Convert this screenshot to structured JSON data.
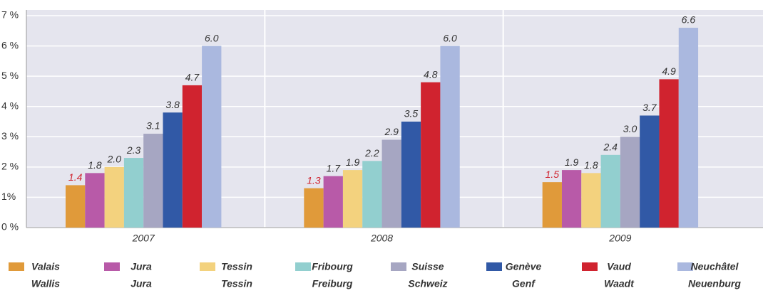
{
  "chart_data": {
    "type": "bar",
    "categories": [
      "2007",
      "2008",
      "2009"
    ],
    "ylim": [
      0,
      7
    ],
    "yticks": [
      {
        "value": 0,
        "label": "0 %"
      },
      {
        "value": 1,
        "label": "1%"
      },
      {
        "value": 2,
        "label": "2 %"
      },
      {
        "value": 3,
        "label": "3 %"
      },
      {
        "value": 4,
        "label": "4 %"
      },
      {
        "value": 5,
        "label": "5 %"
      },
      {
        "value": 6,
        "label": "6 %"
      },
      {
        "value": 7,
        "label": "7 %"
      }
    ],
    "grid": true,
    "legend": "bottom",
    "series": [
      {
        "name": "Valais",
        "name2": "Wallis",
        "color": "#e09a3a",
        "label_color": "#d0232f",
        "values": [
          1.4,
          1.3,
          1.5
        ],
        "value_labels": [
          "1.4",
          "1.3",
          "1.5"
        ]
      },
      {
        "name": "Jura",
        "name2": "Jura",
        "color": "#b85aa8",
        "values": [
          1.8,
          1.7,
          1.9
        ],
        "value_labels": [
          "1.8",
          "1.7",
          "1.9"
        ]
      },
      {
        "name": "Tessin",
        "name2": "Tessin",
        "color": "#f3d27e",
        "values": [
          2.0,
          1.9,
          1.8
        ],
        "value_labels": [
          "2.0",
          "1.9",
          "1.8"
        ]
      },
      {
        "name": "Fribourg",
        "name2": "Freiburg",
        "color": "#92cfcf",
        "values": [
          2.3,
          2.2,
          2.4
        ],
        "value_labels": [
          "2.3",
          "2.2",
          "2.4"
        ]
      },
      {
        "name": "Suisse",
        "name2": "Schweiz",
        "color": "#a6a6c2",
        "values": [
          3.1,
          2.9,
          3.0
        ],
        "value_labels": [
          "3.1",
          "2.9",
          "3.0"
        ]
      },
      {
        "name": "Genève",
        "name2": "Genf",
        "color": "#3159a6",
        "values": [
          3.8,
          3.5,
          3.7
        ],
        "value_labels": [
          "3.8",
          "3.5",
          "3.7"
        ]
      },
      {
        "name": "Vaud",
        "name2": "Waadt",
        "color": "#d0232f",
        "values": [
          4.7,
          4.8,
          4.9
        ],
        "value_labels": [
          "4.7",
          "4.8",
          "4.9"
        ]
      },
      {
        "name": "Neuchâtel",
        "name2": "Neuenburg",
        "color": "#aab8df",
        "values": [
          6.0,
          6.0,
          6.6
        ],
        "value_labels": [
          "6.0",
          "6.0",
          "6.6"
        ]
      }
    ]
  }
}
